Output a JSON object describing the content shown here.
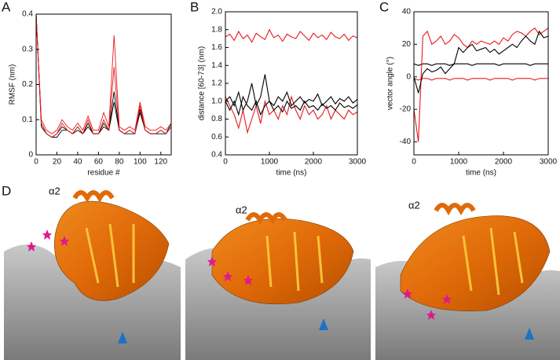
{
  "panel_labels": [
    "A",
    "B",
    "C",
    "D"
  ],
  "chart_data": [
    {
      "type": "line",
      "ylabel": "RMSF (nm)",
      "xlabel": "residue #",
      "x": [
        0,
        5,
        10,
        15,
        20,
        25,
        30,
        35,
        40,
        45,
        50,
        55,
        60,
        65,
        70,
        75,
        80,
        85,
        90,
        95,
        100,
        105,
        110,
        115,
        120,
        125,
        130
      ],
      "xlim": [
        0,
        130
      ],
      "xticks": [
        0,
        20,
        40,
        60,
        80,
        100,
        120
      ],
      "ylim": [
        0,
        0.4
      ],
      "yticks": [
        0,
        0.1,
        0.2,
        0.3,
        0.4
      ],
      "series": [
        {
          "color": "#000000",
          "values": [
            0.4,
            0.09,
            0.06,
            0.05,
            0.06,
            0.08,
            0.07,
            0.06,
            0.08,
            0.06,
            0.09,
            0.06,
            0.06,
            0.09,
            0.07,
            0.18,
            0.07,
            0.06,
            0.07,
            0.06,
            0.13,
            0.07,
            0.06,
            0.06,
            0.07,
            0.06,
            0.09
          ]
        },
        {
          "color": "#000000",
          "values": [
            0.4,
            0.08,
            0.06,
            0.05,
            0.05,
            0.07,
            0.07,
            0.06,
            0.07,
            0.06,
            0.08,
            0.06,
            0.06,
            0.08,
            0.07,
            0.15,
            0.07,
            0.06,
            0.06,
            0.06,
            0.12,
            0.07,
            0.06,
            0.06,
            0.06,
            0.06,
            0.08
          ]
        },
        {
          "color": "#e8191c",
          "values": [
            0.4,
            0.1,
            0.07,
            0.06,
            0.07,
            0.1,
            0.08,
            0.07,
            0.09,
            0.07,
            0.11,
            0.07,
            0.07,
            0.12,
            0.08,
            0.34,
            0.08,
            0.07,
            0.08,
            0.07,
            0.15,
            0.08,
            0.07,
            0.07,
            0.08,
            0.07,
            0.09
          ]
        },
        {
          "color": "#e8191c",
          "values": [
            0.4,
            0.09,
            0.06,
            0.05,
            0.06,
            0.09,
            0.07,
            0.06,
            0.08,
            0.06,
            0.1,
            0.06,
            0.06,
            0.1,
            0.07,
            0.25,
            0.07,
            0.06,
            0.07,
            0.06,
            0.14,
            0.07,
            0.06,
            0.06,
            0.07,
            0.06,
            0.08
          ]
        }
      ]
    },
    {
      "type": "line",
      "ylabel": "distance [60-73] (nm)",
      "xlabel": "time (ns)",
      "x": [
        0,
        100,
        200,
        300,
        400,
        500,
        600,
        700,
        800,
        900,
        1000,
        1100,
        1200,
        1300,
        1400,
        1500,
        1600,
        1700,
        1800,
        1900,
        2000,
        2100,
        2200,
        2300,
        2400,
        2500,
        2600,
        2700,
        2800,
        2900,
        3000
      ],
      "xlim": [
        0,
        3000
      ],
      "xticks": [
        0,
        1000,
        2000,
        3000
      ],
      "ylim": [
        0.4,
        2.0
      ],
      "yticks": [
        0.4,
        0.6,
        0.8,
        {
          "value": 1,
          "label": "1.0"
        },
        1.2,
        1.4,
        1.6,
        1.8,
        {
          "value": 2,
          "label": "2.0"
        }
      ],
      "series": [
        {
          "color": "#e8191c",
          "values": [
            1.72,
            1.75,
            1.68,
            1.78,
            1.7,
            1.74,
            1.66,
            1.76,
            1.72,
            1.69,
            1.8,
            1.71,
            1.74,
            1.67,
            1.75,
            1.72,
            1.7,
            1.78,
            1.73,
            1.68,
            1.76,
            1.71,
            1.74,
            1.69,
            1.77,
            1.72,
            1.7,
            1.75,
            1.68,
            1.73,
            1.71
          ]
        },
        {
          "color": "#e8191c",
          "values": [
            1.05,
            0.95,
            0.85,
            0.7,
            0.9,
            0.65,
            0.8,
            0.95,
            0.75,
            1.0,
            0.85,
            0.9,
            0.8,
            0.95,
            0.85,
            1.05,
            0.9,
            0.8,
            0.95,
            0.85,
            0.9,
            0.8,
            0.85,
            0.95,
            0.8,
            0.9,
            0.85,
            0.8,
            0.9,
            0.85,
            0.88
          ]
        },
        {
          "color": "#000000",
          "values": [
            1.0,
            1.05,
            0.95,
            1.1,
            0.9,
            1.0,
            1.2,
            0.95,
            1.05,
            1.3,
            1.0,
            0.95,
            1.05,
            1.0,
            1.1,
            0.95,
            1.0,
            1.05,
            0.98,
            1.02,
            1.0,
            1.08,
            0.95,
            1.0,
            1.05,
            0.97,
            1.03,
            1.0,
            1.05,
            0.98,
            1.02
          ]
        },
        {
          "color": "#000000",
          "values": [
            1.0,
            0.9,
            1.0,
            0.85,
            1.05,
            0.95,
            0.9,
            1.0,
            0.85,
            0.95,
            1.0,
            0.9,
            0.95,
            0.88,
            1.0,
            0.92,
            0.95,
            0.9,
            1.0,
            0.93,
            0.95,
            0.9,
            0.97,
            0.92,
            0.95,
            0.9,
            0.98,
            0.93,
            0.95,
            0.92,
            0.96
          ]
        }
      ]
    },
    {
      "type": "line",
      "ylabel": "vector angle (°)",
      "xlabel": "time (ns)",
      "x": [
        0,
        100,
        200,
        300,
        400,
        500,
        600,
        700,
        800,
        900,
        1000,
        1100,
        1200,
        1300,
        1400,
        1500,
        1600,
        1700,
        1800,
        1900,
        2000,
        2100,
        2200,
        2300,
        2400,
        2500,
        2600,
        2700,
        2800,
        2900,
        3000
      ],
      "xlim": [
        0,
        3000
      ],
      "xticks": [
        0,
        1000,
        2000,
        3000
      ],
      "ylim": [
        -48,
        40
      ],
      "yticks": [
        -40,
        -20,
        0,
        20,
        40
      ],
      "series": [
        {
          "color": "#000000",
          "values": [
            8,
            7,
            8,
            8,
            7,
            8,
            8,
            8,
            7,
            8,
            8,
            8,
            8,
            7,
            8,
            8,
            8,
            8,
            8,
            7,
            8,
            8,
            8,
            8,
            8,
            8,
            7,
            8,
            8,
            8,
            8
          ]
        },
        {
          "color": "#e8191c",
          "values": [
            -1,
            -2,
            -1,
            -1,
            -2,
            -1,
            -1,
            -1,
            -2,
            -1,
            -1,
            -1,
            -2,
            -1,
            -1,
            -1,
            -1,
            -2,
            -1,
            -1,
            -1,
            -1,
            -2,
            -1,
            -1,
            -1,
            -1,
            -2,
            -1,
            -1,
            -1
          ]
        },
        {
          "color": "#e8191c",
          "values": [
            -20,
            -40,
            25,
            28,
            20,
            22,
            25,
            20,
            22,
            26,
            24,
            20,
            18,
            22,
            20,
            22,
            21,
            20,
            22,
            20,
            24,
            22,
            26,
            28,
            27,
            25,
            28,
            30,
            26,
            28,
            30
          ]
        },
        {
          "color": "#000000",
          "values": [
            0,
            -10,
            2,
            5,
            3,
            4,
            6,
            2,
            5,
            8,
            18,
            15,
            18,
            20,
            16,
            17,
            18,
            15,
            17,
            14,
            16,
            18,
            20,
            18,
            22,
            25,
            22,
            20,
            28,
            24,
            25
          ]
        }
      ]
    }
  ],
  "structures": [
    {
      "helix_label": "α2"
    },
    {
      "helix_label": "α2"
    },
    {
      "helix_label": "α2"
    }
  ]
}
